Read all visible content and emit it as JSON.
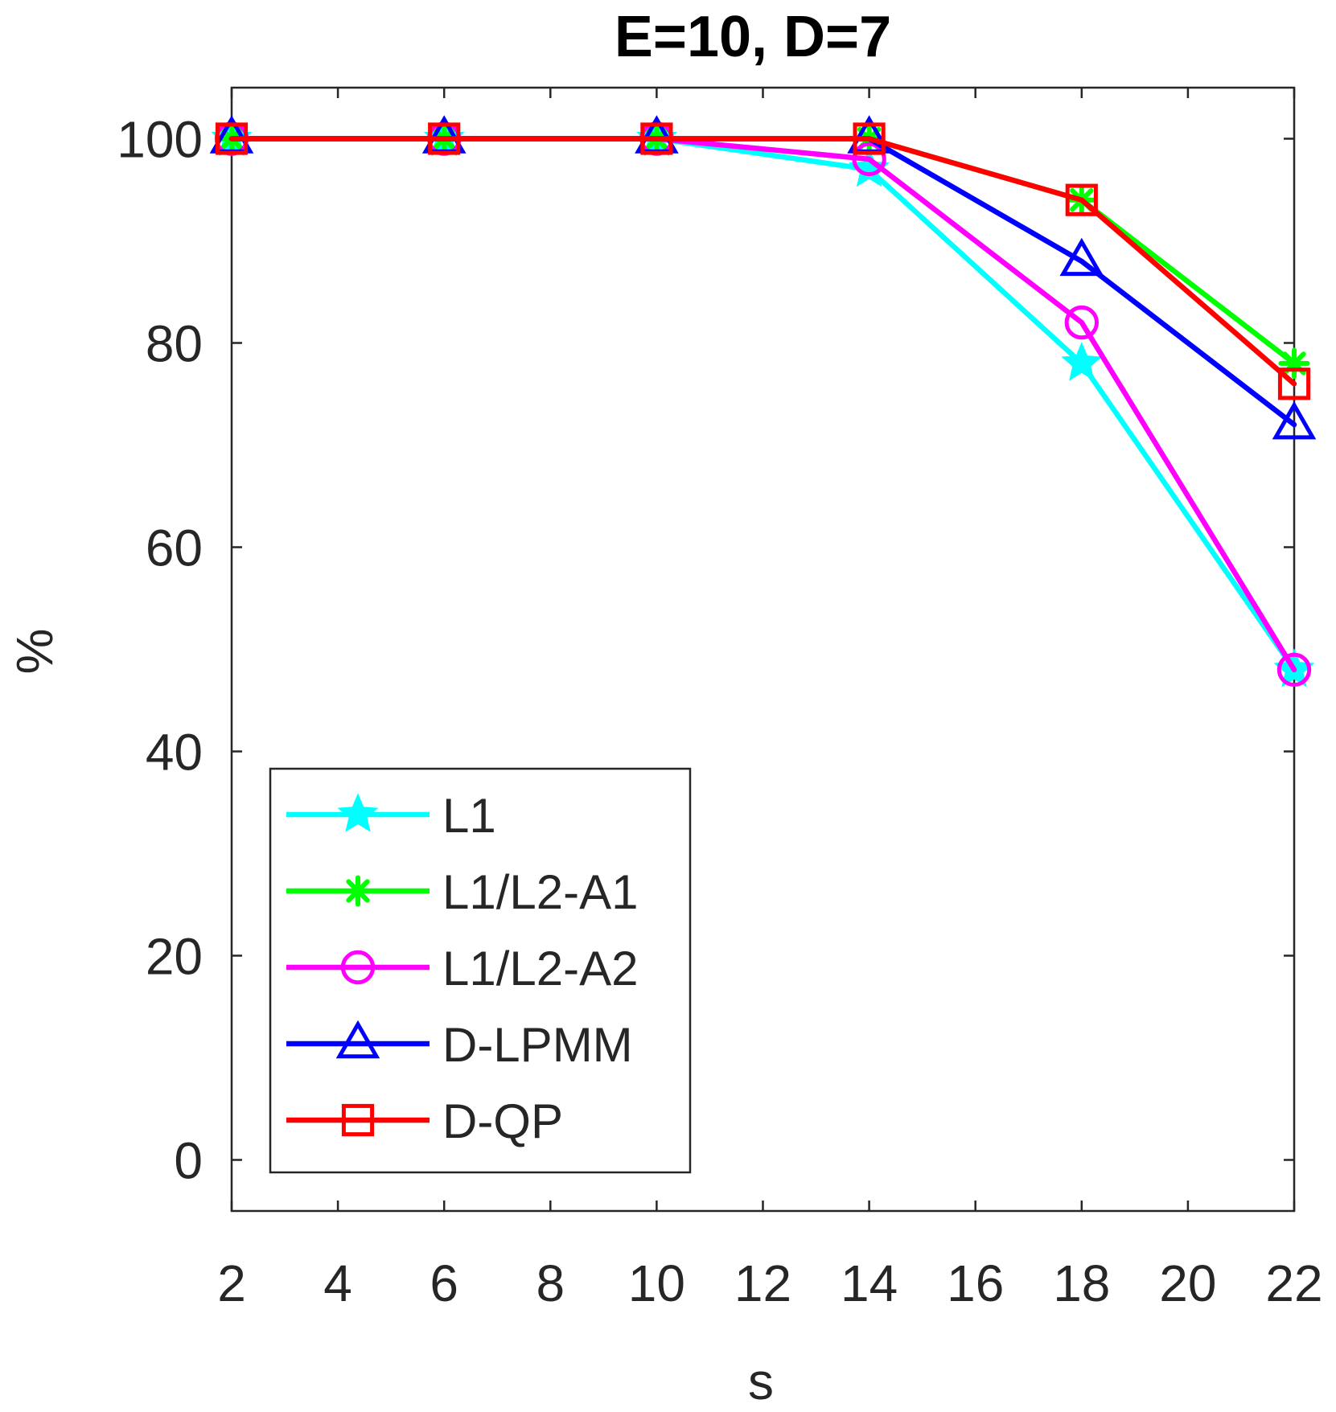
{
  "chart_data": {
    "type": "line",
    "title": "E=10, D=7",
    "xlabel": "s",
    "ylabel": "%",
    "xlim": [
      2,
      22
    ],
    "ylim": [
      -5,
      105
    ],
    "xticks": [
      2,
      4,
      6,
      8,
      10,
      12,
      14,
      16,
      18,
      20,
      22
    ],
    "xtick_labels": [
      "2",
      "4",
      "6",
      "8",
      "10",
      "12",
      "14",
      "16",
      "18",
      "20",
      "22"
    ],
    "yticks": [
      0,
      20,
      40,
      60,
      80,
      100
    ],
    "ytick_labels": [
      "0",
      "20",
      "40",
      "60",
      "80",
      "100"
    ],
    "x": [
      2,
      6,
      10,
      14,
      18,
      22
    ],
    "grid": false,
    "box": true,
    "legend_position": "bottom-left",
    "series": [
      {
        "name": "L1",
        "color": "#00FFFF",
        "marker": "star",
        "values": [
          100,
          100,
          100,
          97,
          78,
          48
        ]
      },
      {
        "name": "L1/L2-A1",
        "color": "#00FF00",
        "marker": "asterisk",
        "values": [
          100,
          100,
          100,
          100,
          94,
          78
        ]
      },
      {
        "name": "L1/L2-A2",
        "color": "#FF00FF",
        "marker": "circle",
        "values": [
          100,
          100,
          100,
          98,
          82,
          48
        ]
      },
      {
        "name": "D-LPMM",
        "color": "#0000FF",
        "marker": "triangle",
        "values": [
          100,
          100,
          100,
          100,
          88,
          72
        ]
      },
      {
        "name": "D-QP",
        "color": "#FF0000",
        "marker": "square",
        "values": [
          100,
          100,
          100,
          100,
          94,
          76
        ]
      }
    ]
  }
}
